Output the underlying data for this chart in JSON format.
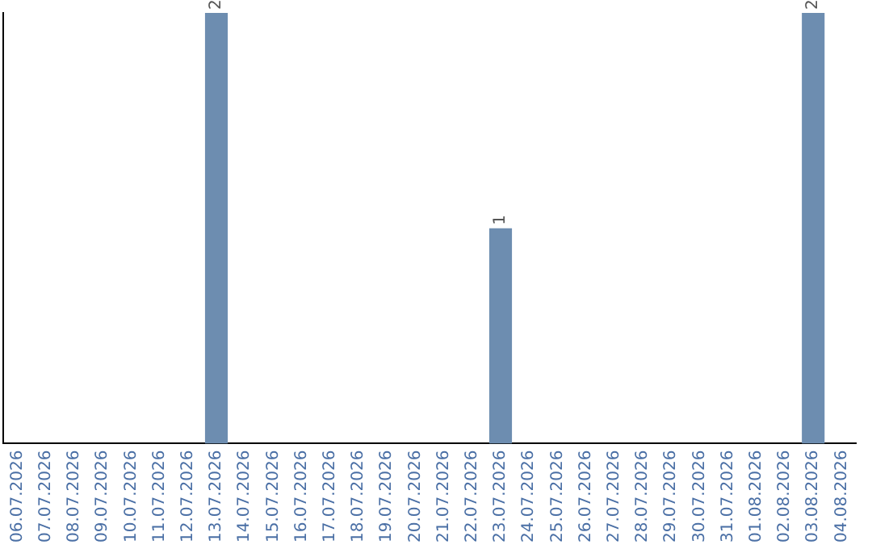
{
  "chart_data": {
    "type": "bar",
    "categories": [
      "06.07.2026",
      "07.07.2026",
      "08.07.2026",
      "09.07.2026",
      "10.07.2026",
      "11.07.2026",
      "12.07.2026",
      "13.07.2026",
      "14.07.2026",
      "15.07.2026",
      "16.07.2026",
      "17.07.2026",
      "18.07.2026",
      "19.07.2026",
      "20.07.2026",
      "21.07.2026",
      "22.07.2026",
      "23.07.2026",
      "24.07.2026",
      "25.07.2026",
      "26.07.2026",
      "27.07.2026",
      "28.07.2026",
      "29.07.2026",
      "30.07.2026",
      "31.07.2026",
      "01.08.2026",
      "02.08.2026",
      "03.08.2026",
      "04.08.2026"
    ],
    "values": [
      0,
      0,
      0,
      0,
      0,
      0,
      0,
      2,
      0,
      0,
      0,
      0,
      0,
      0,
      0,
      0,
      0,
      1,
      0,
      0,
      0,
      0,
      0,
      0,
      0,
      0,
      0,
      0,
      2,
      0
    ],
    "value_labels": [
      null,
      null,
      null,
      null,
      null,
      null,
      null,
      "2",
      null,
      null,
      null,
      null,
      null,
      null,
      null,
      null,
      null,
      "1",
      null,
      null,
      null,
      null,
      null,
      null,
      null,
      null,
      null,
      null,
      "2",
      null
    ],
    "color": "#6d8db0",
    "tick_labels": "x",
    "grid": false,
    "legend": false
  }
}
